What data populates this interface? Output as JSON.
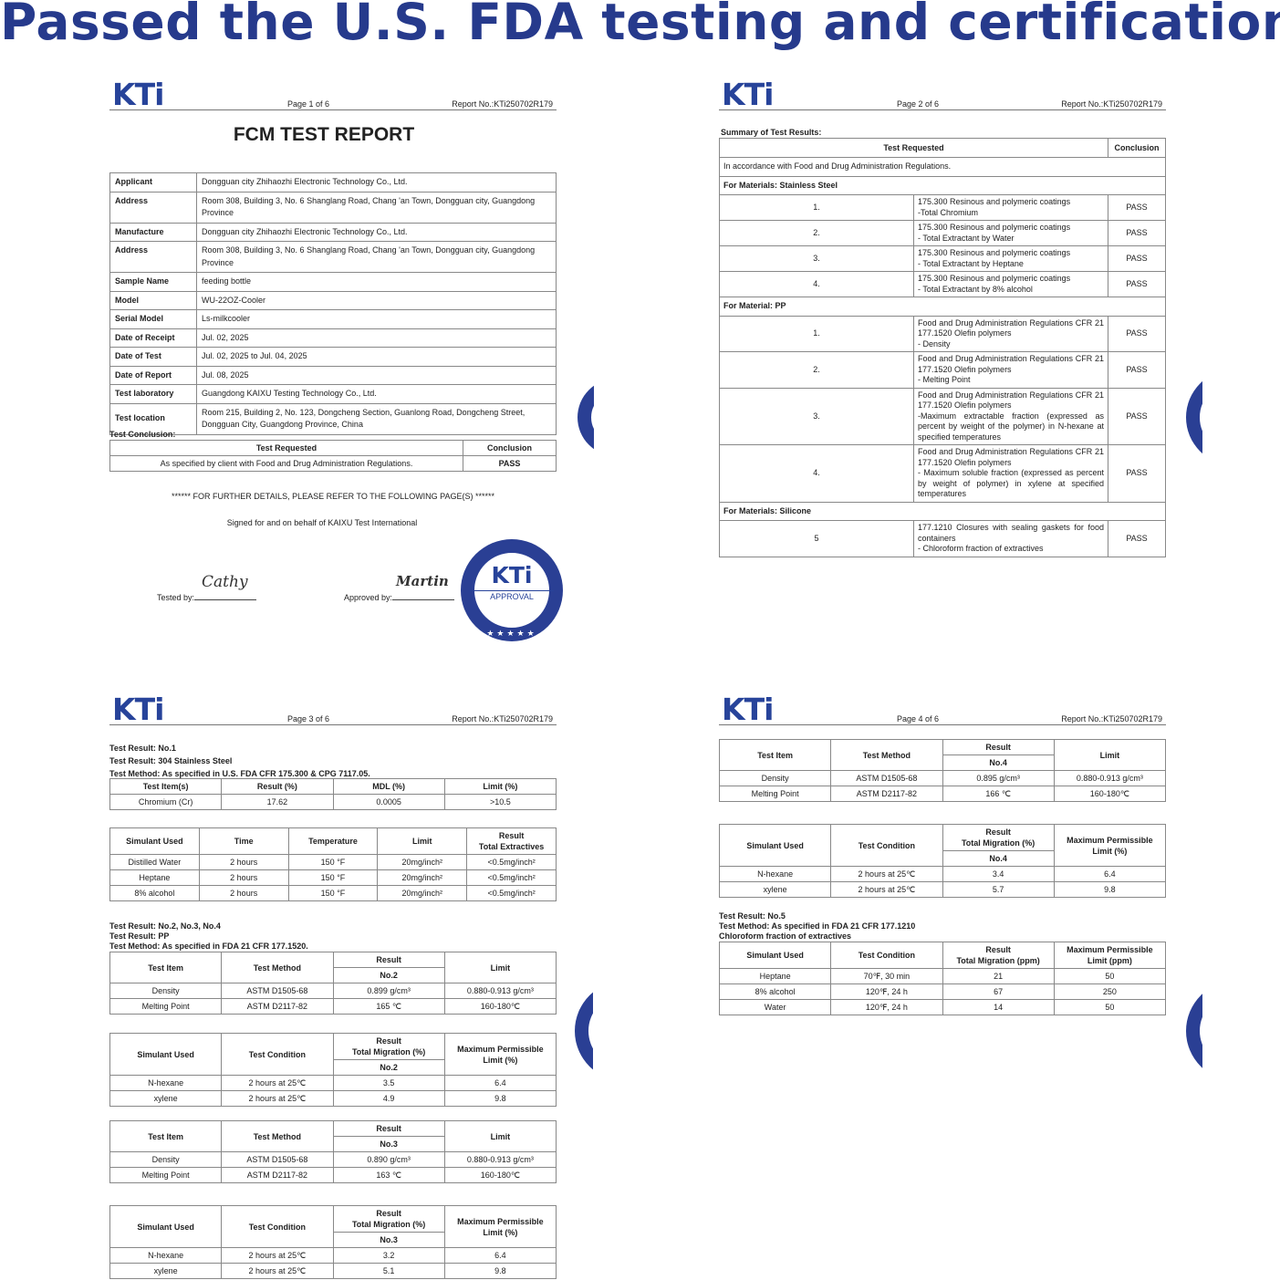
{
  "headline": "Passed the U.S. FDA testing and certification",
  "colors": {
    "headline": "#263a8c",
    "logo": "#27439a",
    "seal": "#2a3f94"
  },
  "logo_text": "KTi",
  "report_no": "Report No.:KTi250702R179",
  "page1": {
    "page_label": "Page 1 of 6",
    "title": "FCM TEST REPORT",
    "info_rows": [
      {
        "label": "Applicant",
        "value": "Dongguan city Zhihaozhi Electronic Technology Co., Ltd."
      },
      {
        "label": "Address",
        "value": "Room 308, Building 3, No. 6 Shanglang Road, Chang 'an Town, Dongguan city, Guangdong Province"
      },
      {
        "label": "Manufacture",
        "value": "Dongguan city Zhihaozhi Electronic Technology Co., Ltd."
      },
      {
        "label": "Address",
        "value": "Room 308, Building 3, No. 6 Shanglang Road, Chang 'an Town, Dongguan city, Guangdong Province"
      },
      {
        "label": "Sample Name",
        "value": "feeding bottle"
      },
      {
        "label": "Model",
        "value": "WU-22OZ-Cooler"
      },
      {
        "label": "Serial Model",
        "value": "Ls-milkcooler"
      },
      {
        "label": "Date of Receipt",
        "value": "Jul. 02, 2025"
      },
      {
        "label": "Date of Test",
        "value": "Jul. 02, 2025 to Jul. 04, 2025"
      },
      {
        "label": "Date of Report",
        "value": "Jul. 08, 2025"
      },
      {
        "label": "Test laboratory",
        "value": "Guangdong KAIXU Testing Technology Co., Ltd."
      },
      {
        "label": "Test location",
        "value": "Room 215, Building 2, No. 123, Dongcheng Section, Guanlong Road, Dongcheng Street, Dongguan City, Guangdong Province, China"
      }
    ],
    "conclusion_label": "Test Conclusion:",
    "conclusion_table": {
      "header": [
        [
          "Test Requested",
          "Conclusion"
        ]
      ],
      "rows": [
        [
          "As specified by client with Food and Drug Administration Regulations.",
          "PASS"
        ]
      ]
    },
    "further_details": "****** FOR FURTHER DETAILS, PLEASE REFER TO THE FOLLOWING PAGE(S) ******",
    "signed_text": "Signed for and on behalf of KAIXU Test International",
    "tested_by_label": "Tested by:",
    "approved_by_label": "Approved by:",
    "tested_by_signature": "Cathy",
    "approved_by_signature": "Martin",
    "seal": {
      "ring_text": "GUANGDONG KAIXU TESTING TECHNOLOGY CO.,LTD",
      "logo": "KTi",
      "caption": "APPROVAL",
      "stars": "★★★★★"
    }
  },
  "page2": {
    "page_label": "Page 2 of 6",
    "summary_label": "Summary of Test Results:",
    "header": [
      "Test Requested",
      "Conclusion"
    ],
    "intro": "In accordance with Food and Drug Administration Regulations.",
    "sections": [
      {
        "heading": "For Materials: Stainless Steel",
        "items": [
          {
            "num": "1.",
            "text": "175.300 Resinous and polymeric coatings\n-Total Chromium",
            "result": "PASS"
          },
          {
            "num": "2.",
            "text": "175.300 Resinous and polymeric coatings\n- Total Extractant by Water",
            "result": "PASS"
          },
          {
            "num": "3.",
            "text": "175.300 Resinous and polymeric coatings\n- Total Extractant by Heptane",
            "result": "PASS"
          },
          {
            "num": "4.",
            "text": "175.300 Resinous and polymeric coatings\n- Total Extractant by 8% alcohol",
            "result": "PASS"
          }
        ]
      },
      {
        "heading": "For Material: PP",
        "items": [
          {
            "num": "1.",
            "text": "Food and Drug Administration Regulations CFR 21 177.1520 Olefin polymers\n - Density",
            "result": "PASS"
          },
          {
            "num": "2.",
            "text": "Food and Drug Administration Regulations CFR 21 177.1520 Olefin polymers\n - Melting Point",
            "result": "PASS"
          },
          {
            "num": "3.",
            "text": "Food and Drug Administration Regulations CFR 21 177.1520 Olefin polymers\n -Maximum extractable fraction (expressed as percent by weight of the polymer) in N-hexane at specified temperatures",
            "result": "PASS"
          },
          {
            "num": "4.",
            "text": "Food and Drug Administration Regulations CFR 21 177.1520 Olefin polymers\n- Maximum soluble fraction (expressed as percent by weight of polymer) in xylene at specified temperatures",
            "result": "PASS"
          }
        ]
      },
      {
        "heading": "For Materials: Silicone",
        "items": [
          {
            "num": "5",
            "text": "177.1210 Closures with sealing gaskets for food containers\n- Chloroform fraction of extractives",
            "result": "PASS"
          }
        ]
      }
    ]
  },
  "page3": {
    "page_label": "Page 3 of 6",
    "intro1": [
      "Test Result: No.1",
      "Test Result: 304 Stainless Steel",
      "Test Method: As specified in U.S. FDA CFR 175.300 & CPG 7117.05."
    ],
    "t_chromium": {
      "header": [
        [
          "Test Item(s)",
          "Result (%)",
          "MDL (%)",
          "Limit (%)"
        ]
      ],
      "rows": [
        [
          "Chromium (Cr)",
          "17.62",
          "0.0005",
          ">10.5"
        ]
      ]
    },
    "t_extractives": {
      "header": [
        [
          "Simulant Used",
          "Time",
          "Temperature",
          "Limit",
          "Result\nTotal Extractives"
        ]
      ],
      "rows": [
        [
          "Distilled Water",
          "2 hours",
          "150 °F",
          "20mg/inch²",
          "<0.5mg/inch²"
        ],
        [
          "Heptane",
          "2 hours",
          "150 °F",
          "20mg/inch²",
          "<0.5mg/inch²"
        ],
        [
          "8% alcohol",
          "2 hours",
          "150 °F",
          "20mg/inch²",
          "<0.5mg/inch²"
        ]
      ]
    },
    "intro2": [
      "Test Result: No.2, No.3, No.4",
      "Test Result: PP",
      "Test Method: As specified in FDA 21 CFR 177.1520."
    ],
    "t_no2": {
      "header": [
        [
          "Test Item",
          "Test Method",
          "Result",
          "Limit"
        ],
        [
          "No.2"
        ]
      ],
      "rows": [
        [
          "Density",
          "ASTM D1505-68",
          "0.899 g/cm³",
          "0.880-0.913 g/cm³"
        ],
        [
          "Melting Point",
          "ASTM D2117-82",
          "165 ℃",
          "160-180℃"
        ]
      ]
    },
    "t_mig2": {
      "header": [
        [
          "Simulant Used",
          "Test Condition",
          "Result\nTotal Migration (%)",
          "Maximum Permissible\nLimit (%)"
        ],
        [
          "No.2"
        ]
      ],
      "rows": [
        [
          "N-hexane",
          "2 hours at 25℃",
          "3.5",
          "6.4"
        ],
        [
          "xylene",
          "2 hours at 25℃",
          "4.9",
          "9.8"
        ]
      ]
    },
    "t_no3": {
      "header": [
        [
          "Test Item",
          "Test Method",
          "Result",
          "Limit"
        ],
        [
          "No.3"
        ]
      ],
      "rows": [
        [
          "Density",
          "ASTM D1505-68",
          "0.890 g/cm³",
          "0.880-0.913 g/cm³"
        ],
        [
          "Melting Point",
          "ASTM D2117-82",
          "163 ℃",
          "160-180℃"
        ]
      ]
    },
    "t_mig3": {
      "header": [
        [
          "Simulant Used",
          "Test Condition",
          "Result\nTotal Migration (%)",
          "Maximum Permissible\nLimit (%)"
        ],
        [
          "No.3"
        ]
      ],
      "rows": [
        [
          "N-hexane",
          "2 hours at 25℃",
          "3.2",
          "6.4"
        ],
        [
          "xylene",
          "2 hours at 25℃",
          "5.1",
          "9.8"
        ]
      ]
    }
  },
  "page4": {
    "page_label": "Page 4 of 6",
    "t_no4": {
      "header": [
        [
          "Test Item",
          "Test Method",
          "Result",
          "Limit"
        ],
        [
          "No.4"
        ]
      ],
      "rows": [
        [
          "Density",
          "ASTM D1505-68",
          "0.895 g/cm³",
          "0.880-0.913 g/cm³"
        ],
        [
          "Melting Point",
          "ASTM D2117-82",
          "166 ℃",
          "160-180℃"
        ]
      ]
    },
    "t_mig4": {
      "header": [
        [
          "Simulant Used",
          "Test Condition",
          "Result\nTotal Migration (%)",
          "Maximum Permissible\nLimit (%)"
        ],
        [
          "No.4"
        ]
      ],
      "rows": [
        [
          "N-hexane",
          "2 hours at 25℃",
          "3.4",
          "6.4"
        ],
        [
          "xylene",
          "2 hours at 25℃",
          "5.7",
          "9.8"
        ]
      ]
    },
    "intro5": [
      "Test Result:  No.5",
      "Test Method: As specified in FDA 21 CFR 177.1210",
      "Chloroform fraction of extractives"
    ],
    "t_no5": {
      "header": [
        [
          "Simulant Used",
          "Test Condition",
          "Result\nTotal Migration (ppm)",
          "Maximum Permissible\nLimit (ppm)"
        ]
      ],
      "rows": [
        [
          "Heptane",
          "70℉, 30 min",
          "21",
          "50"
        ],
        [
          "8% alcohol",
          "120℉, 24 h",
          "67",
          "250"
        ],
        [
          "Water",
          "120℉, 24 h",
          "14",
          "50"
        ]
      ]
    }
  }
}
